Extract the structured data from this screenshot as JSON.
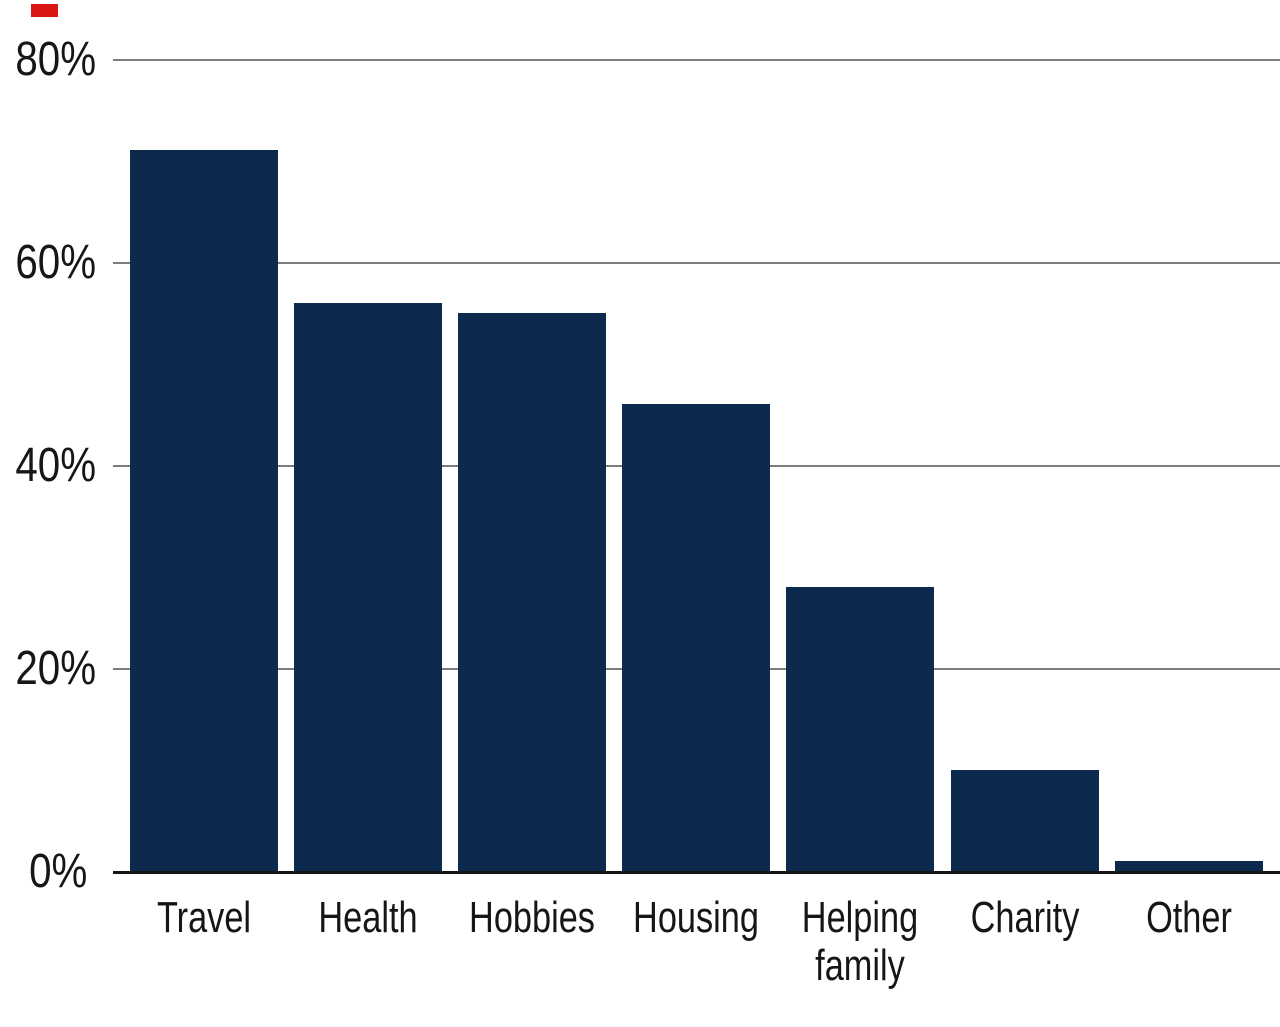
{
  "chart_data": {
    "type": "bar",
    "title": "",
    "xlabel": "",
    "ylabel": "",
    "categories": [
      "Travel",
      "Health",
      "Hobbies",
      "Housing",
      "Helping family",
      "Charity",
      "Other"
    ],
    "values": [
      71,
      56,
      55,
      46,
      28,
      10,
      1
    ],
    "ylim": [
      0,
      80
    ],
    "ytick_values": [
      0,
      20,
      40,
      60,
      80
    ],
    "ytick_labels": [
      "0%",
      "20%",
      "40%",
      "60%",
      "80%"
    ],
    "grid": true,
    "legend": false,
    "gridline_side": "full-width",
    "colors": {
      "bar": "#0c2a4e",
      "gridline": "#7d7d7d",
      "baseline": "#141414",
      "text": "#161616",
      "brand_red_tab": "#d91712",
      "background": "#ffffff"
    }
  }
}
